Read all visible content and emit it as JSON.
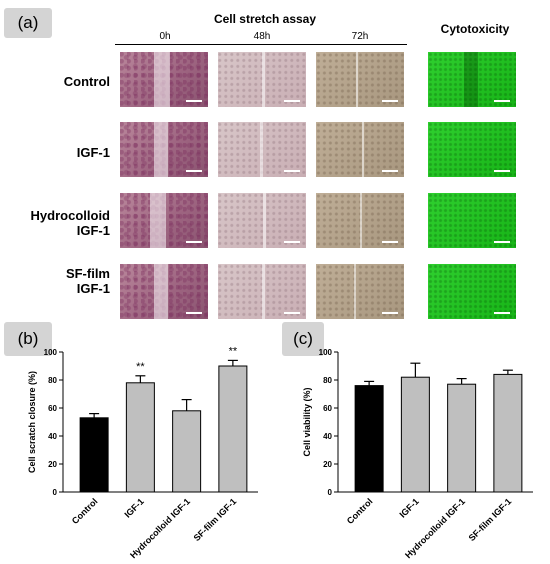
{
  "panel_a": {
    "label": "(a)",
    "assay_title": "Cell stretch assay",
    "cyto_title": "Cytotoxicity",
    "columns": [
      "0h",
      "48h",
      "72h"
    ],
    "rows": [
      {
        "line1": "Control",
        "line2": ""
      },
      {
        "line1": "IGF-1",
        "line2": ""
      },
      {
        "line1": "Hydrocolloid",
        "line2": "IGF-1"
      },
      {
        "line1": "SF-film",
        "line2": "IGF-1"
      }
    ]
  },
  "panel_b": {
    "label": "(b)"
  },
  "panel_c": {
    "label": "(c)"
  },
  "chart_data": [
    {
      "type": "bar",
      "categories": [
        "Control",
        "IGF-1",
        "Hydrocolloid IGF-1",
        "SF-film IGF-1"
      ],
      "values": [
        53,
        78,
        58,
        90
      ],
      "errors": [
        3,
        5,
        8,
        4
      ],
      "significance": [
        "",
        "**",
        "",
        "**"
      ],
      "bar_colors": [
        "#000000",
        "#bfbfbf",
        "#bfbfbf",
        "#bfbfbf"
      ],
      "ylabel": "Cell scratch closure (%)",
      "ylim": [
        0,
        100
      ],
      "yticks": [
        "0",
        "20",
        "40",
        "60",
        "80",
        "100"
      ]
    },
    {
      "type": "bar",
      "categories": [
        "Control",
        "IGF-1",
        "Hydrocolloid IGF-1",
        "SF-film IGF-1"
      ],
      "values": [
        76,
        82,
        77,
        84
      ],
      "errors": [
        3,
        10,
        4,
        3
      ],
      "significance": [
        "",
        "",
        "",
        ""
      ],
      "bar_colors": [
        "#000000",
        "#bfbfbf",
        "#bfbfbf",
        "#bfbfbf"
      ],
      "ylabel": "Cell viability (%)",
      "ylim": [
        0,
        100
      ],
      "yticks": [
        "0",
        "20",
        "40",
        "60",
        "80",
        "100"
      ]
    }
  ]
}
